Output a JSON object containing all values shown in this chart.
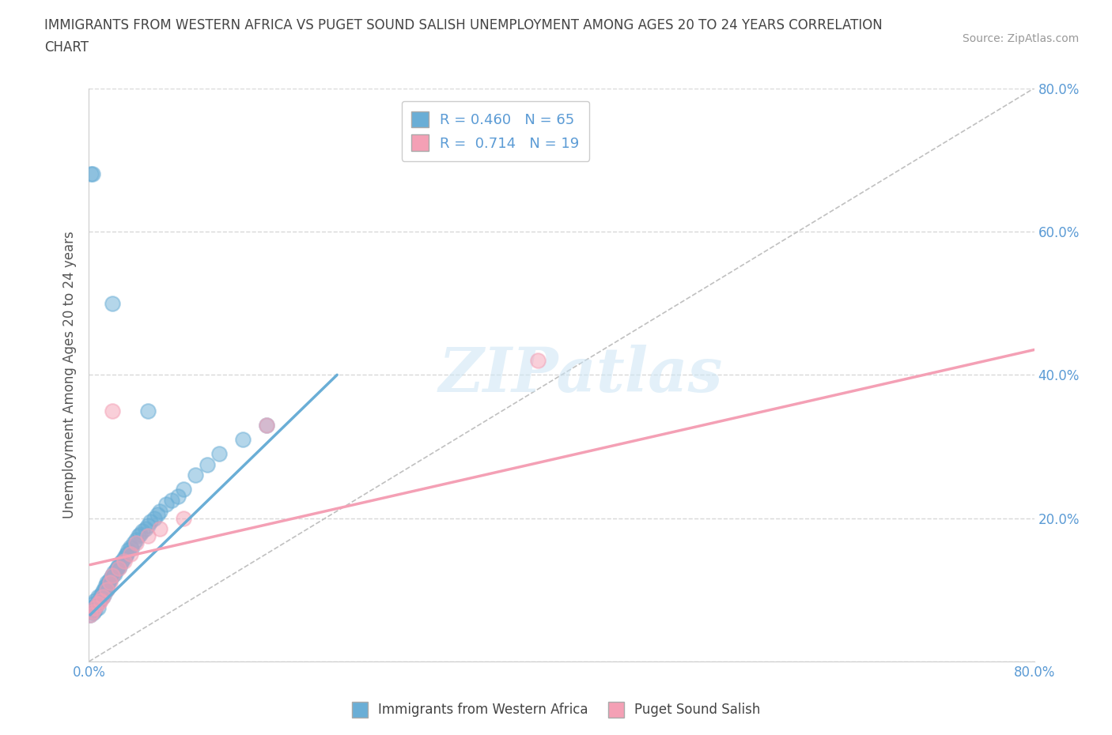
{
  "title_line1": "IMMIGRANTS FROM WESTERN AFRICA VS PUGET SOUND SALISH UNEMPLOYMENT AMONG AGES 20 TO 24 YEARS CORRELATION",
  "title_line2": "CHART",
  "source": "Source: ZipAtlas.com",
  "ylabel": "Unemployment Among Ages 20 to 24 years",
  "xlim": [
    0.0,
    0.8
  ],
  "ylim": [
    0.0,
    0.8
  ],
  "blue_color": "#6aaed6",
  "pink_color": "#f4a0b5",
  "blue_r": 0.46,
  "blue_n": 65,
  "pink_r": 0.714,
  "pink_n": 19,
  "watermark": "ZIPatlas",
  "legend_label_blue": "Immigrants from Western Africa",
  "legend_label_pink": "Puget Sound Salish",
  "blue_scatter_x": [
    0.001,
    0.002,
    0.003,
    0.004,
    0.004,
    0.005,
    0.005,
    0.006,
    0.007,
    0.008,
    0.008,
    0.009,
    0.01,
    0.01,
    0.011,
    0.012,
    0.012,
    0.013,
    0.013,
    0.014,
    0.015,
    0.015,
    0.016,
    0.017,
    0.018,
    0.019,
    0.02,
    0.021,
    0.022,
    0.023,
    0.024,
    0.025,
    0.026,
    0.027,
    0.028,
    0.03,
    0.031,
    0.032,
    0.033,
    0.035,
    0.036,
    0.038,
    0.04,
    0.042,
    0.043,
    0.045,
    0.048,
    0.05,
    0.052,
    0.055,
    0.058,
    0.06,
    0.065,
    0.07,
    0.075,
    0.08,
    0.09,
    0.1,
    0.11,
    0.13,
    0.15,
    0.02,
    0.05,
    0.002,
    0.003
  ],
  "blue_scatter_y": [
    0.065,
    0.075,
    0.07,
    0.068,
    0.08,
    0.072,
    0.085,
    0.078,
    0.082,
    0.075,
    0.09,
    0.085,
    0.088,
    0.092,
    0.095,
    0.09,
    0.098,
    0.1,
    0.095,
    0.105,
    0.1,
    0.11,
    0.108,
    0.112,
    0.115,
    0.118,
    0.12,
    0.125,
    0.122,
    0.128,
    0.13,
    0.135,
    0.132,
    0.138,
    0.14,
    0.145,
    0.148,
    0.15,
    0.155,
    0.16,
    0.158,
    0.165,
    0.17,
    0.175,
    0.178,
    0.182,
    0.185,
    0.19,
    0.195,
    0.2,
    0.205,
    0.21,
    0.22,
    0.225,
    0.23,
    0.24,
    0.26,
    0.275,
    0.29,
    0.31,
    0.33,
    0.5,
    0.35,
    0.68,
    0.68
  ],
  "pink_scatter_x": [
    0.001,
    0.003,
    0.005,
    0.008,
    0.01,
    0.012,
    0.015,
    0.018,
    0.02,
    0.025,
    0.03,
    0.035,
    0.04,
    0.05,
    0.06,
    0.08,
    0.15,
    0.38,
    0.02
  ],
  "pink_scatter_y": [
    0.065,
    0.07,
    0.075,
    0.08,
    0.085,
    0.09,
    0.1,
    0.11,
    0.12,
    0.13,
    0.14,
    0.15,
    0.165,
    0.175,
    0.185,
    0.2,
    0.33,
    0.42,
    0.35
  ],
  "blue_trend_x": [
    0.001,
    0.21
  ],
  "blue_trend_y": [
    0.065,
    0.4
  ],
  "pink_trend_x": [
    0.001,
    0.8
  ],
  "pink_trend_y": [
    0.135,
    0.435
  ]
}
